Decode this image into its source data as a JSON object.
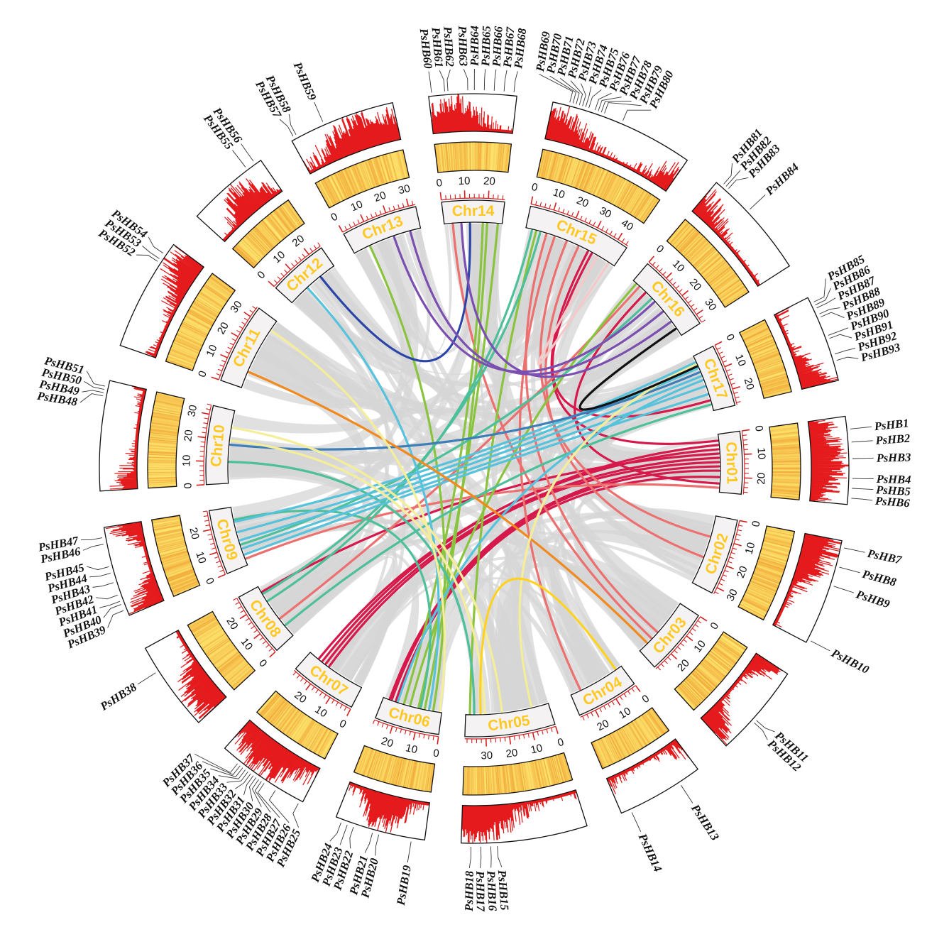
{
  "colors": {
    "label_fill": "#ffc820",
    "label_box": "#f4f2f2",
    "tick": "#d32020",
    "hist": "#e41a1c",
    "heat_low": "#fff27a",
    "heat_high": "#f0a030",
    "background_links": "#d5d5d5",
    "border": "#111111"
  },
  "chromosomes": [
    {
      "id": "Chr01",
      "length": 27,
      "ticks": [
        0,
        10,
        20
      ]
    },
    {
      "id": "Chr02",
      "length": 33,
      "ticks": [
        0,
        10,
        20,
        30
      ]
    },
    {
      "id": "Chr03",
      "length": 29,
      "ticks": [
        0,
        10,
        20
      ]
    },
    {
      "id": "Chr04",
      "length": 27,
      "ticks": [
        0,
        10,
        20
      ]
    },
    {
      "id": "Chr05",
      "length": 39,
      "ticks": [
        0,
        10,
        20,
        30
      ]
    },
    {
      "id": "Chr06",
      "length": 28,
      "ticks": [
        0,
        10,
        20
      ]
    },
    {
      "id": "Chr07",
      "length": 29,
      "ticks": [
        0,
        10,
        20
      ]
    },
    {
      "id": "Chr08",
      "length": 28,
      "ticks": [
        0,
        10,
        20
      ]
    },
    {
      "id": "Chr09",
      "length": 28,
      "ticks": [
        0,
        10,
        20
      ]
    },
    {
      "id": "Chr10",
      "length": 34,
      "ticks": [
        0,
        10,
        20,
        30
      ]
    },
    {
      "id": "Chr11",
      "length": 35,
      "ticks": [
        0,
        10,
        20,
        30
      ]
    },
    {
      "id": "Chr12",
      "length": 26,
      "ticks": [
        0,
        10,
        20
      ]
    },
    {
      "id": "Chr13",
      "length": 33,
      "ticks": [
        0,
        10,
        20,
        30
      ]
    },
    {
      "id": "Chr14",
      "length": 27,
      "ticks": [
        0,
        10,
        20
      ]
    },
    {
      "id": "Chr15",
      "length": 45,
      "ticks": [
        0,
        10,
        20,
        30,
        40
      ]
    },
    {
      "id": "Chr16",
      "length": 34,
      "ticks": [
        0,
        10,
        20,
        30
      ]
    },
    {
      "id": "Chr17",
      "length": 27,
      "ticks": [
        0,
        10,
        20
      ]
    }
  ],
  "genes": [
    {
      "chr": "Chr01",
      "labels": [
        "PsHB1",
        "PsHB2",
        "PsHB3",
        "PsHB4",
        "PsHB5",
        "PsHB6"
      ],
      "pos": [
        4,
        8,
        13,
        19,
        22,
        25
      ]
    },
    {
      "chr": "Chr02",
      "labels": [
        "PsHB7",
        "PsHB8",
        "PsHB9",
        "PsHB10"
      ],
      "pos": [
        2,
        8,
        14,
        32
      ]
    },
    {
      "chr": "Chr03",
      "labels": [
        "PsHB11",
        "PsHB12"
      ],
      "pos": [
        17,
        18
      ]
    },
    {
      "chr": "Chr04",
      "labels": [
        "PsHB13",
        "PsHB14"
      ],
      "pos": [
        7,
        24
      ]
    },
    {
      "chr": "Chr05",
      "labels": [
        "PsHB15",
        "PsHB16",
        "PsHB17",
        "PsHB18"
      ],
      "pos": [
        28,
        30,
        33,
        36
      ]
    },
    {
      "chr": "Chr06",
      "labels": [
        "PsHB19",
        "PsHB20",
        "PsHB21",
        "PsHB22",
        "PsHB23",
        "PsHB24"
      ],
      "pos": [
        4,
        14,
        16,
        22,
        24,
        26
      ]
    },
    {
      "chr": "Chr07",
      "labels": [
        "PsHB25",
        "PsHB26",
        "PsHB27",
        "PsHB28",
        "PsHB29",
        "PsHB30",
        "PsHB31",
        "PsHB32",
        "PsHB33",
        "PsHB34",
        "PsHB35",
        "PsHB36",
        "PsHB37"
      ],
      "pos": [
        1,
        9,
        13,
        14,
        15,
        16,
        17,
        18,
        19,
        20,
        21,
        22,
        23
      ]
    },
    {
      "chr": "Chr08",
      "labels": [
        "PsHB38"
      ],
      "pos": [
        20
      ]
    },
    {
      "chr": "Chr09",
      "labels": [
        "PsHB39",
        "PsHB40",
        "PsHB41",
        "PsHB42",
        "PsHB43",
        "PsHB44",
        "PsHB45",
        "PsHB46",
        "PsHB47"
      ],
      "pos": [
        2,
        4,
        5,
        7,
        11,
        14,
        16,
        23,
        25
      ]
    },
    {
      "chr": "Chr10",
      "labels": [
        "PsHB48",
        "PsHB49",
        "PsHB50",
        "PsHB51"
      ],
      "pos": [
        29,
        30,
        31,
        32
      ]
    },
    {
      "chr": "Chr11",
      "labels": [
        "PsHB52",
        "PsHB53",
        "PsHB54"
      ],
      "pos": [
        28,
        29,
        31
      ]
    },
    {
      "chr": "Chr12",
      "labels": [
        "PsHB55",
        "PsHB56"
      ],
      "pos": [
        21,
        24
      ]
    },
    {
      "chr": "Chr13",
      "labels": [
        "PsHB57",
        "PsHB58",
        "PsHB59"
      ],
      "pos": [
        1,
        2,
        11
      ]
    },
    {
      "chr": "Chr14",
      "labels": [
        "PsHB60",
        "PsHB61",
        "PsHB62",
        "PsHB63",
        "PsHB64",
        "PsHB65",
        "PsHB66",
        "PsHB67",
        "PsHB68"
      ],
      "pos": [
        1,
        5,
        6,
        12,
        14,
        17,
        20,
        23,
        26
      ]
    },
    {
      "chr": "Chr15",
      "labels": [
        "PsHB69",
        "PsHB70",
        "PsHB71",
        "PsHB72",
        "PsHB73",
        "PsHB74",
        "PsHB75",
        "PsHB76",
        "PsHB77",
        "PsHB78",
        "PsHB79",
        "PsHB80"
      ],
      "pos": [
        5,
        6,
        7,
        8,
        9,
        10,
        11,
        13,
        14,
        15,
        16,
        22
      ]
    },
    {
      "chr": "Chr16",
      "labels": [
        "PsHB81",
        "PsHB82",
        "PsHB83",
        "PsHB84"
      ],
      "pos": [
        2,
        3,
        4,
        13
      ]
    },
    {
      "chr": "Chr17",
      "labels": [
        "PsHB85",
        "PsHB86",
        "PsHB87",
        "PsHB88",
        "PsHB89",
        "PsHB90",
        "PsHB91",
        "PsHB92",
        "PsHB93"
      ],
      "pos": [
        2,
        3,
        4,
        6,
        7,
        13,
        14,
        19,
        21
      ]
    }
  ],
  "links": [
    {
      "a": [
        "Chr01",
        5
      ],
      "b": [
        "Chr07",
        22
      ],
      "color": "#d6194a"
    },
    {
      "a": [
        "Chr01",
        7
      ],
      "b": [
        "Chr07",
        24
      ],
      "color": "#d6194a"
    },
    {
      "a": [
        "Chr01",
        9
      ],
      "b": [
        "Chr08",
        25
      ],
      "color": "#d6194a"
    },
    {
      "a": [
        "Chr01",
        11
      ],
      "b": [
        "Chr07",
        20
      ],
      "color": "#d6194a"
    },
    {
      "a": [
        "Chr01",
        13
      ],
      "b": [
        "Chr07",
        18
      ],
      "color": "#d6194a"
    },
    {
      "a": [
        "Chr01",
        15
      ],
      "b": [
        "Chr06",
        25
      ],
      "color": "#d6194a"
    },
    {
      "a": [
        "Chr01",
        17
      ],
      "b": [
        "Chr06",
        24
      ],
      "color": "#d6194a"
    },
    {
      "a": [
        "Chr01",
        20
      ],
      "b": [
        "Chr06",
        22
      ],
      "color": "#d6194a"
    },
    {
      "a": [
        "Chr01",
        3
      ],
      "b": [
        "Chr15",
        31
      ],
      "color": "#d6194a"
    },
    {
      "a": [
        "Chr17",
        22
      ],
      "b": [
        "Chr15",
        33
      ],
      "color": "#d6194a"
    },
    {
      "a": [
        "Chr16",
        8
      ],
      "b": [
        "Chr01",
        23
      ],
      "color": "#d6194a"
    },
    {
      "a": [
        "Chr15",
        10
      ],
      "b": [
        "Chr03",
        17
      ],
      "color": "#ec7070"
    },
    {
      "a": [
        "Chr15",
        14
      ],
      "b": [
        "Chr04",
        22
      ],
      "color": "#ec7070"
    },
    {
      "a": [
        "Chr15",
        20
      ],
      "b": [
        "Chr02",
        10
      ],
      "color": "#ec7070"
    },
    {
      "a": [
        "Chr14",
        4
      ],
      "b": [
        "Chr03",
        21
      ],
      "color": "#ec7070"
    },
    {
      "a": [
        "Chr15",
        26
      ],
      "b": [
        "Chr02",
        20
      ],
      "color": "#ec7070"
    },
    {
      "a": [
        "Chr16",
        4
      ],
      "b": [
        "Chr08",
        10
      ],
      "color": "#ec7070"
    },
    {
      "a": [
        "Chr01",
        25
      ],
      "b": [
        "Chr09",
        3
      ],
      "color": "#ec7070"
    },
    {
      "a": [
        "Chr13",
        8
      ],
      "b": [
        "Chr06",
        4
      ],
      "color": "#8ac43f"
    },
    {
      "a": [
        "Chr14",
        20
      ],
      "b": [
        "Chr06",
        8
      ],
      "color": "#8ac43f"
    },
    {
      "a": [
        "Chr14",
        25
      ],
      "b": [
        "Chr06",
        11
      ],
      "color": "#8ac43f"
    },
    {
      "a": [
        "Chr14",
        18
      ],
      "b": [
        "Chr06",
        18
      ],
      "color": "#8ac43f"
    },
    {
      "a": [
        "Chr16",
        2
      ],
      "b": [
        "Chr06",
        15
      ],
      "color": "#8ac43f"
    },
    {
      "a": [
        "Chr15",
        5
      ],
      "b": [
        "Chr05",
        37
      ],
      "color": "#8ac43f"
    },
    {
      "a": [
        "Chr15",
        3
      ],
      "b": [
        "Chr08",
        20
      ],
      "color": "#4dbf9b"
    },
    {
      "a": [
        "Chr15",
        7
      ],
      "b": [
        "Chr08",
        24
      ],
      "color": "#4dbf9b"
    },
    {
      "a": [
        "Chr16",
        12
      ],
      "b": [
        "Chr09",
        10
      ],
      "color": "#4dbf9b"
    },
    {
      "a": [
        "Chr17",
        24
      ],
      "b": [
        "Chr08",
        6
      ],
      "color": "#4dbf9b"
    },
    {
      "a": [
        "Chr10",
        10
      ],
      "b": [
        "Chr05",
        35
      ],
      "color": "#4dbf9b"
    },
    {
      "a": [
        "Chr09",
        22
      ],
      "b": [
        "Chr06",
        10
      ],
      "color": "#4dbf9b"
    },
    {
      "a": [
        "Chr17",
        3
      ],
      "b": [
        "Chr09",
        21
      ],
      "color": "#56c2dc"
    },
    {
      "a": [
        "Chr17",
        6
      ],
      "b": [
        "Chr09",
        16
      ],
      "color": "#56c2dc"
    },
    {
      "a": [
        "Chr17",
        10
      ],
      "b": [
        "Chr09",
        12
      ],
      "color": "#56c2dc"
    },
    {
      "a": [
        "Chr17",
        15
      ],
      "b": [
        "Chr09",
        8
      ],
      "color": "#56c2dc"
    },
    {
      "a": [
        "Chr17",
        19
      ],
      "b": [
        "Chr09",
        5
      ],
      "color": "#56c2dc"
    },
    {
      "a": [
        "Chr17",
        12
      ],
      "b": [
        "Chr06",
        21
      ],
      "color": "#56c2dc"
    },
    {
      "a": [
        "Chr12",
        10
      ],
      "b": [
        "Chr06",
        6
      ],
      "color": "#56c2dc"
    },
    {
      "a": [
        "Chr17",
        8
      ],
      "b": [
        "Chr10",
        18
      ],
      "color": "#3d7eb8"
    },
    {
      "a": [
        "Chr12",
        18
      ],
      "b": [
        "Chr14",
        12
      ],
      "color": "#2b44a8"
    },
    {
      "a": [
        "Chr13",
        20
      ],
      "b": [
        "Chr16",
        14
      ],
      "color": "#7b4fb0"
    },
    {
      "a": [
        "Chr13",
        28
      ],
      "b": [
        "Chr16",
        20
      ],
      "color": "#7b4fb0"
    },
    {
      "a": [
        "Chr14",
        8
      ],
      "b": [
        "Chr16",
        26
      ],
      "color": "#7b4fb0"
    },
    {
      "a": [
        "Chr11",
        8
      ],
      "b": [
        "Chr03",
        24
      ],
      "color": "#f08a1e"
    },
    {
      "a": [
        "Chr11",
        30
      ],
      "b": [
        "Chr06",
        1
      ],
      "color": "#f4ee9a"
    },
    {
      "a": [
        "Chr10",
        26
      ],
      "b": [
        "Chr05",
        22
      ],
      "color": "#f4ee9a"
    },
    {
      "a": [
        "Chr10",
        20
      ],
      "b": [
        "Chr05",
        30
      ],
      "color": "#f4ee9a"
    },
    {
      "a": [
        "Chr17",
        4
      ],
      "b": [
        "Chr05",
        8
      ],
      "color": "#f4ee9a"
    },
    {
      "a": [
        "Chr15",
        36
      ],
      "b": [
        "Chr15",
        42
      ],
      "color": "#f6c8c8"
    },
    {
      "a": [
        "Chr17",
        5
      ],
      "b": [
        "Chr16",
        30
      ],
      "color": "#111111"
    },
    {
      "a": [
        "Chr05",
        32
      ],
      "b": [
        "Chr04",
        3
      ],
      "color": "#ffd21e"
    }
  ]
}
